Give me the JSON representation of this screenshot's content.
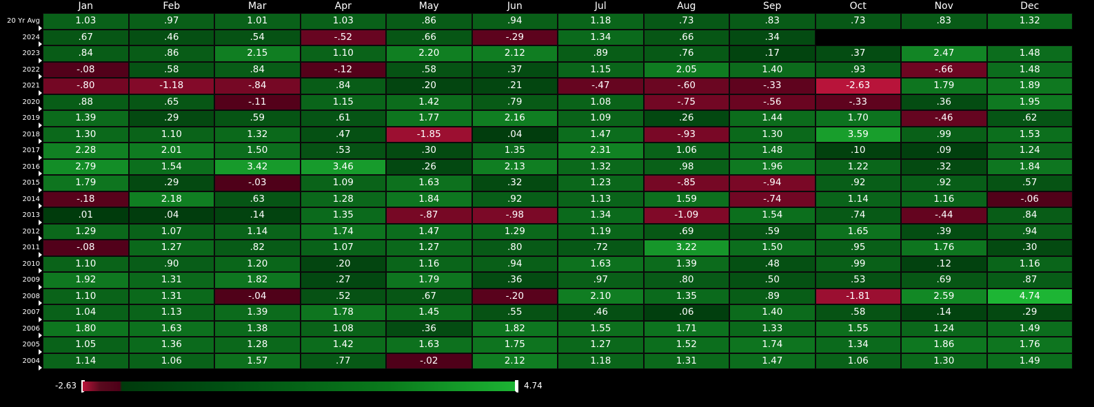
{
  "chart_data": {
    "type": "heatmap",
    "title": "",
    "columns": [
      "Jan",
      "Feb",
      "Mar",
      "Apr",
      "May",
      "Jun",
      "Jul",
      "Aug",
      "Sep",
      "Oct",
      "Nov",
      "Dec"
    ],
    "rows": [
      "20 Yr Avg",
      "2024",
      "2023",
      "2022",
      "2021",
      "2020",
      "2019",
      "2018",
      "2017",
      "2016",
      "2015",
      "2014",
      "2013",
      "2012",
      "2011",
      "2010",
      "2009",
      "2008",
      "2007",
      "2006",
      "2005",
      "2004"
    ],
    "values": [
      [
        1.03,
        0.97,
        1.01,
        1.03,
        0.86,
        0.94,
        1.18,
        0.73,
        0.83,
        0.73,
        0.83,
        1.32
      ],
      [
        0.67,
        0.46,
        0.54,
        -0.52,
        0.66,
        -0.29,
        1.34,
        0.66,
        0.34,
        null,
        null,
        null
      ],
      [
        0.84,
        0.86,
        2.15,
        1.1,
        2.2,
        2.12,
        0.89,
        0.76,
        0.17,
        0.37,
        2.47,
        1.48
      ],
      [
        -0.08,
        0.58,
        0.84,
        -0.12,
        0.58,
        0.37,
        1.15,
        2.05,
        1.4,
        0.93,
        -0.66,
        1.48
      ],
      [
        -0.8,
        -1.18,
        -0.84,
        0.84,
        0.2,
        0.21,
        -0.47,
        -0.6,
        -0.33,
        -2.63,
        1.79,
        1.89
      ],
      [
        0.88,
        0.65,
        -0.11,
        1.15,
        1.42,
        0.79,
        1.08,
        -0.75,
        -0.56,
        -0.33,
        0.36,
        1.95
      ],
      [
        1.39,
        0.29,
        0.59,
        0.61,
        1.77,
        2.16,
        1.09,
        0.26,
        1.44,
        1.7,
        -0.46,
        0.62
      ],
      [
        1.3,
        1.1,
        1.32,
        0.47,
        -1.85,
        0.04,
        1.47,
        -0.93,
        1.3,
        3.59,
        0.99,
        1.53
      ],
      [
        2.28,
        2.01,
        1.5,
        0.53,
        0.3,
        1.35,
        2.31,
        1.06,
        1.48,
        0.1,
        0.09,
        1.24
      ],
      [
        2.79,
        1.54,
        3.42,
        3.46,
        0.26,
        2.13,
        1.32,
        0.98,
        1.96,
        1.22,
        0.32,
        1.84
      ],
      [
        1.79,
        0.29,
        -0.03,
        1.09,
        1.63,
        0.32,
        1.23,
        -0.85,
        -0.94,
        0.92,
        0.92,
        0.57
      ],
      [
        -0.18,
        2.18,
        0.63,
        1.28,
        1.84,
        0.92,
        1.13,
        1.59,
        -0.74,
        1.14,
        1.16,
        -0.06
      ],
      [
        0.01,
        0.04,
        0.14,
        1.35,
        -0.87,
        -0.98,
        1.34,
        -1.09,
        1.54,
        0.74,
        -0.44,
        0.84
      ],
      [
        1.29,
        1.07,
        1.14,
        1.74,
        1.47,
        1.29,
        1.19,
        0.69,
        0.59,
        1.65,
        0.39,
        0.94
      ],
      [
        -0.08,
        1.27,
        0.82,
        1.07,
        1.27,
        0.8,
        0.72,
        3.22,
        1.5,
        0.95,
        1.76,
        0.3
      ],
      [
        1.1,
        0.9,
        1.2,
        0.2,
        1.16,
        0.94,
        1.63,
        1.39,
        0.48,
        0.99,
        0.12,
        1.16
      ],
      [
        1.92,
        1.31,
        1.82,
        0.27,
        1.79,
        0.36,
        0.97,
        0.8,
        0.5,
        0.53,
        0.69,
        0.87
      ],
      [
        1.1,
        1.31,
        -0.04,
        0.52,
        0.67,
        -0.2,
        2.1,
        1.35,
        0.89,
        -1.81,
        2.59,
        4.74
      ],
      [
        1.04,
        1.13,
        1.39,
        1.78,
        1.45,
        0.55,
        0.46,
        0.06,
        1.4,
        0.58,
        0.14,
        0.29
      ],
      [
        1.8,
        1.63,
        1.38,
        1.08,
        0.36,
        1.82,
        1.55,
        1.71,
        1.33,
        1.55,
        1.24,
        1.49
      ],
      [
        1.05,
        1.36,
        1.28,
        1.42,
        1.63,
        1.75,
        1.27,
        1.52,
        1.74,
        1.34,
        1.86,
        1.76
      ],
      [
        1.14,
        1.06,
        1.57,
        0.77,
        -0.02,
        2.12,
        1.18,
        1.31,
        1.47,
        1.06,
        1.3,
        1.49
      ]
    ],
    "scale": {
      "min": -2.63,
      "max": 4.74,
      "min_label": "-2.63",
      "max_label": "4.74",
      "negative_color": "#b8143a",
      "negative_dark_color": "#4d0018",
      "positive_dark_color": "#003a0c",
      "positive_color": "#1db534"
    },
    "legend_placement": "bottom-left"
  }
}
